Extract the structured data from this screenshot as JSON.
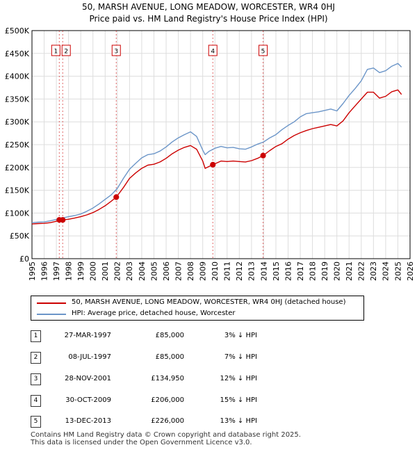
{
  "chart_data": {
    "type": "line",
    "title": "50, MARSH AVENUE, LONG MEADOW, WORCESTER, WR4 0HJ",
    "subtitle": "Price paid vs. HM Land Registry's House Price Index (HPI)",
    "xlim": [
      1995,
      2026
    ],
    "ylim": [
      0,
      500000
    ],
    "y_ticks": [
      0,
      50000,
      100000,
      150000,
      200000,
      250000,
      300000,
      350000,
      400000,
      450000,
      500000
    ],
    "y_tick_labels": [
      "£0",
      "£50K",
      "£100K",
      "£150K",
      "£200K",
      "£250K",
      "£300K",
      "£350K",
      "£400K",
      "£450K",
      "£500K"
    ],
    "x_ticks": [
      1995,
      1996,
      1997,
      1998,
      1999,
      2000,
      2001,
      2002,
      2003,
      2004,
      2005,
      2006,
      2007,
      2008,
      2009,
      2010,
      2011,
      2012,
      2013,
      2014,
      2015,
      2016,
      2017,
      2018,
      2019,
      2020,
      2021,
      2022,
      2023,
      2024,
      2025,
      2026
    ],
    "x_tick_labels": [
      "1995",
      "1996",
      "1997",
      "1998",
      "1999",
      "2000",
      "2001",
      "2002",
      "2003",
      "2004",
      "2005",
      "2006",
      "2007",
      "2008",
      "2009",
      "2010",
      "2011",
      "2012",
      "2013",
      "2014",
      "2015",
      "2016",
      "2017",
      "2018",
      "2019",
      "2020",
      "2021",
      "2022",
      "2023",
      "2024",
      "2025",
      "2026"
    ],
    "series": [
      {
        "name": "HPI: Average price, detached house, Worcester",
        "color": "#6b95c8",
        "x": [
          1995.0,
          1995.5,
          1996.0,
          1996.5,
          1997.0,
          1997.5,
          1998.0,
          1998.5,
          1999.0,
          1999.5,
          2000.0,
          2000.5,
          2001.0,
          2001.5,
          2002.0,
          2002.5,
          2003.0,
          2003.5,
          2004.0,
          2004.5,
          2005.0,
          2005.5,
          2006.0,
          2006.5,
          2007.0,
          2007.5,
          2008.0,
          2008.5,
          2009.0,
          2009.2,
          2009.5,
          2010.0,
          2010.5,
          2011.0,
          2011.5,
          2012.0,
          2012.5,
          2013.0,
          2013.5,
          2014.0,
          2014.5,
          2015.0,
          2015.5,
          2016.0,
          2016.5,
          2017.0,
          2017.5,
          2018.0,
          2018.5,
          2019.0,
          2019.5,
          2020.0,
          2020.5,
          2021.0,
          2021.5,
          2022.0,
          2022.5,
          2023.0,
          2023.5,
          2024.0,
          2024.5,
          2025.0,
          2025.3
        ],
        "values": [
          79000,
          80000,
          80500,
          83000,
          86000,
          89000,
          92000,
          94500,
          98000,
          104000,
          111000,
          120000,
          130000,
          140000,
          154000,
          176000,
          196000,
          209000,
          221000,
          228000,
          230000,
          236000,
          245000,
          256000,
          265000,
          272000,
          278000,
          268000,
          238000,
          228000,
          235000,
          242000,
          246000,
          243000,
          244000,
          241000,
          240000,
          245000,
          251000,
          256000,
          265000,
          272000,
          283000,
          292000,
          300000,
          311000,
          318000,
          320000,
          322000,
          325000,
          328000,
          324000,
          340000,
          358000,
          373000,
          390000,
          415000,
          418000,
          408000,
          412000,
          422000,
          428000,
          420000
        ]
      },
      {
        "name": "50, MARSH AVENUE, LONG MEADOW, WORCESTER, WR4 0HJ (detached house)",
        "color": "#cc0000",
        "x": [
          1995.0,
          1995.5,
          1996.0,
          1996.5,
          1997.0,
          1997.24,
          1997.52,
          1998.0,
          1998.5,
          1999.0,
          1999.5,
          2000.0,
          2000.5,
          2001.0,
          2001.5,
          2001.91,
          2002.5,
          2003.0,
          2003.5,
          2004.0,
          2004.5,
          2005.0,
          2005.5,
          2006.0,
          2006.5,
          2007.0,
          2007.5,
          2008.0,
          2008.5,
          2009.0,
          2009.2,
          2009.5,
          2009.83,
          2010.5,
          2011.0,
          2011.5,
          2012.0,
          2012.5,
          2013.0,
          2013.5,
          2013.95,
          2014.5,
          2015.0,
          2015.5,
          2016.0,
          2016.5,
          2017.0,
          2017.5,
          2018.0,
          2018.5,
          2019.0,
          2019.5,
          2020.0,
          2020.5,
          2021.0,
          2021.5,
          2022.0,
          2022.5,
          2023.0,
          2023.5,
          2024.0,
          2024.5,
          2025.0,
          2025.3
        ],
        "values": [
          76000,
          77000,
          77500,
          79000,
          82000,
          85000,
          85000,
          86500,
          89000,
          92000,
          96000,
          101000,
          108000,
          116000,
          126000,
          134950,
          156000,
          176000,
          188000,
          198000,
          205000,
          207000,
          212000,
          220000,
          230000,
          238000,
          244000,
          248000,
          240000,
          214000,
          198000,
          202000,
          206000,
          214000,
          213000,
          214000,
          213000,
          212000,
          215000,
          220000,
          226000,
          237000,
          246000,
          252000,
          262000,
          270000,
          276000,
          281000,
          285000,
          288000,
          291000,
          294000,
          291000,
          302000,
          320000,
          335000,
          350000,
          365000,
          365000,
          352000,
          356000,
          366000,
          370000,
          360000
        ]
      }
    ],
    "sales": [
      {
        "label": "1",
        "x": 1997.24,
        "price": 85000
      },
      {
        "label": "2",
        "x": 1997.52,
        "price": 85000
      },
      {
        "label": "3",
        "x": 2001.91,
        "price": 134950
      },
      {
        "label": "4",
        "x": 2009.83,
        "price": 206000
      },
      {
        "label": "5",
        "x": 2013.95,
        "price": 226000
      }
    ],
    "grid": true
  },
  "legend": {
    "items": [
      {
        "label": "50, MARSH AVENUE, LONG MEADOW, WORCESTER, WR4 0HJ (detached house)",
        "color": "#cc0000"
      },
      {
        "label": "HPI: Average price, detached house, Worcester",
        "color": "#6b95c8"
      }
    ]
  },
  "table": {
    "rows": [
      {
        "num": "1",
        "date": "27-MAR-1997",
        "price": "£85,000",
        "hpi": "3% ↓ HPI"
      },
      {
        "num": "2",
        "date": "08-JUL-1997",
        "price": "£85,000",
        "hpi": "7% ↓ HPI"
      },
      {
        "num": "3",
        "date": "28-NOV-2001",
        "price": "£134,950",
        "hpi": "12% ↓ HPI"
      },
      {
        "num": "4",
        "date": "30-OCT-2009",
        "price": "£206,000",
        "hpi": "15% ↓ HPI"
      },
      {
        "num": "5",
        "date": "13-DEC-2013",
        "price": "£226,000",
        "hpi": "13% ↓ HPI"
      }
    ]
  },
  "footer": {
    "line1": "Contains HM Land Registry data © Crown copyright and database right 2025.",
    "line2": "This data is licensed under the Open Government Licence v3.0."
  }
}
